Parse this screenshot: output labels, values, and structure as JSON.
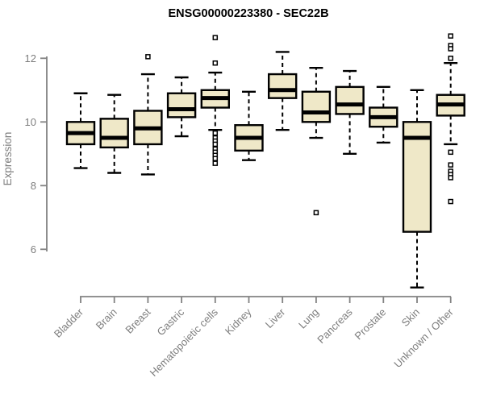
{
  "chart_data": {
    "type": "boxplot",
    "title": "ENSG00000223380 - SEC22B",
    "ylabel": "Expression",
    "xlabel": "",
    "ylim": [
      4.3,
      12.9
    ],
    "yticks": [
      6,
      8,
      10,
      12
    ],
    "grid": false,
    "legend": "none",
    "categories": [
      "Bladder",
      "Brain",
      "Breast",
      "Gastric",
      "Hematopoietic cells",
      "Kidney",
      "Liver",
      "Lung",
      "Pancreas",
      "Prostate",
      "Skin",
      "Unknown / Other"
    ],
    "series": [
      {
        "name": "Bladder",
        "whisker_low": 8.55,
        "q1": 9.3,
        "median": 9.65,
        "q3": 10.0,
        "whisker_high": 10.9,
        "outliers": []
      },
      {
        "name": "Brain",
        "whisker_low": 8.4,
        "q1": 9.2,
        "median": 9.5,
        "q3": 10.1,
        "whisker_high": 10.85,
        "outliers": []
      },
      {
        "name": "Breast",
        "whisker_low": 8.35,
        "q1": 9.3,
        "median": 9.8,
        "q3": 10.35,
        "whisker_high": 11.5,
        "outliers": [
          12.05
        ]
      },
      {
        "name": "Gastric",
        "whisker_low": 9.55,
        "q1": 10.15,
        "median": 10.4,
        "q3": 10.9,
        "whisker_high": 11.4,
        "outliers": []
      },
      {
        "name": "Hematopoietic cells",
        "whisker_low": 9.75,
        "q1": 10.45,
        "median": 10.75,
        "q3": 11.0,
        "whisker_high": 11.55,
        "outliers": [
          12.65,
          11.85,
          9.65,
          9.5,
          9.4,
          9.3,
          9.15,
          9.05,
          8.95,
          8.85,
          8.7
        ]
      },
      {
        "name": "Kidney",
        "whisker_low": 8.8,
        "q1": 9.1,
        "median": 9.5,
        "q3": 9.9,
        "whisker_high": 10.95,
        "outliers": []
      },
      {
        "name": "Liver",
        "whisker_low": 9.75,
        "q1": 10.75,
        "median": 11.0,
        "q3": 11.5,
        "whisker_high": 12.2,
        "outliers": []
      },
      {
        "name": "Lung",
        "whisker_low": 9.5,
        "q1": 10.0,
        "median": 10.3,
        "q3": 10.95,
        "whisker_high": 11.7,
        "outliers": [
          7.15
        ]
      },
      {
        "name": "Pancreas",
        "whisker_low": 9.0,
        "q1": 10.25,
        "median": 10.55,
        "q3": 11.1,
        "whisker_high": 11.6,
        "outliers": []
      },
      {
        "name": "Prostate",
        "whisker_low": 9.35,
        "q1": 9.85,
        "median": 10.15,
        "q3": 10.45,
        "whisker_high": 11.1,
        "outliers": []
      },
      {
        "name": "Skin",
        "whisker_low": 4.8,
        "q1": 6.55,
        "median": 9.5,
        "q3": 10.0,
        "whisker_high": 11.0,
        "outliers": []
      },
      {
        "name": "Unknown / Other",
        "whisker_low": 9.3,
        "q1": 10.2,
        "median": 10.55,
        "q3": 10.85,
        "whisker_high": 11.85,
        "outliers": [
          12.7,
          12.4,
          12.3,
          12.0,
          9.05,
          8.65,
          8.45,
          8.35,
          8.25,
          7.5
        ]
      }
    ],
    "colors": {
      "box_fill": "#EFE8C8",
      "box_border": "#000000",
      "median": "#000000",
      "whisker": "#000000",
      "outlier_stroke": "#000000",
      "axis": "#828282",
      "tick_label": "#7E7E7E",
      "title": "#000000",
      "background": "#FFFFFF"
    }
  }
}
